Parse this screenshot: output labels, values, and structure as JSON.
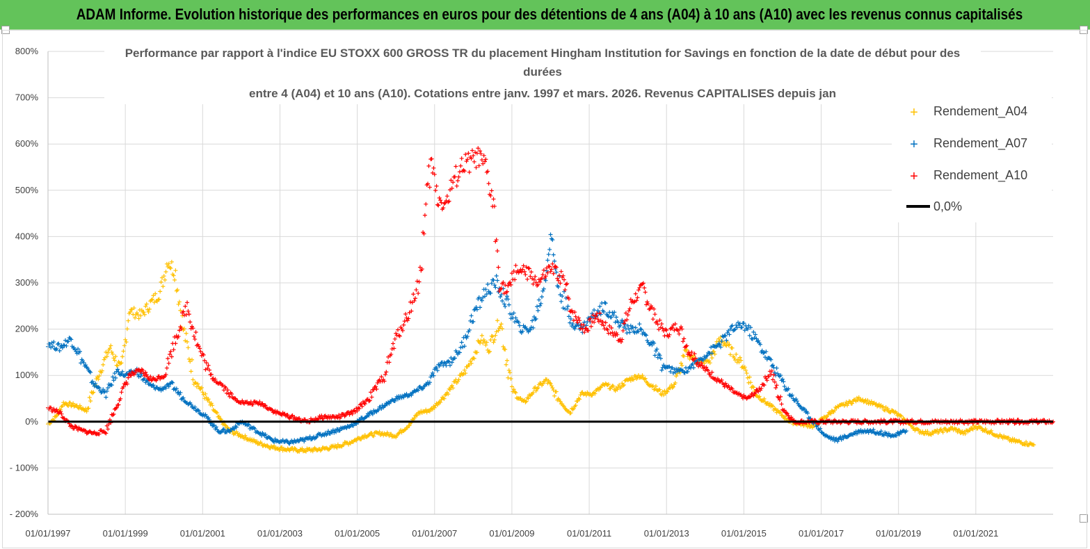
{
  "header": {
    "title": "ADAM Informe. Evolution historique des performances en euros pour des détentions de 4 ans (A04) à 10 ans (A10) avec les revenus connus capitalisés"
  },
  "chart_data": {
    "type": "scatter",
    "title_lines": [
      "Performance par rapport à l'indice EU STOXX 600 GROSS TR  du placement Hingham Institution for Savings en fonction de la date de début pour des",
      "durées",
      "entre 4 (A04) et 10 ans (A10). Cotations entre janv. 1997 et mars. 2026. Revenus CAPITALISES depuis jan"
    ],
    "x_ticks": [
      "01/01/1997",
      "01/01/1999",
      "01/01/2001",
      "01/01/2003",
      "01/01/2005",
      "01/01/2007",
      "01/01/2009",
      "01/01/2011",
      "01/01/2013",
      "01/01/2015",
      "01/01/2017",
      "01/01/2019",
      "01/01/2021"
    ],
    "y_ticks": [
      "800%",
      "700%",
      "600%",
      "500%",
      "400%",
      "300%",
      "200%",
      "100%",
      "0%",
      "- 100%",
      "- 200%"
    ],
    "xlim": [
      1997.0,
      2023.0
    ],
    "ylim": [
      -200,
      800
    ],
    "legend": [
      {
        "name": "Rendement_A04",
        "color": "#ffc000",
        "marker": "+"
      },
      {
        "name": "Rendement_A07",
        "color": "#0070c0",
        "marker": "+"
      },
      {
        "name": "Rendement_A10",
        "color": "#ff0000",
        "marker": "+"
      },
      {
        "name": "0,0%",
        "color": "#000000",
        "marker": "line"
      }
    ],
    "series": [
      {
        "name": "Rendement_A04",
        "color": "#ffc000",
        "x": [
          1997.0,
          1997.2,
          1997.4,
          1997.7,
          1998.0,
          1998.3,
          1998.6,
          1998.9,
          1999.1,
          1999.4,
          1999.6,
          1999.9,
          2000.1,
          2000.3,
          2000.5,
          2000.8,
          2001.1,
          2001.4,
          2001.7,
          2002.0,
          2002.4,
          2002.8,
          2003.2,
          2003.6,
          2004.0,
          2004.4,
          2004.8,
          2005.2,
          2005.6,
          2006.0,
          2006.3,
          2006.6,
          2006.9,
          2007.2,
          2007.5,
          2007.8,
          2008.0,
          2008.2,
          2008.4,
          2008.7,
          2009.0,
          2009.3,
          2009.6,
          2009.9,
          2010.2,
          2010.5,
          2010.8,
          2011.1,
          2011.4,
          2011.7,
          2012.0,
          2012.3,
          2012.6,
          2012.9,
          2013.2,
          2013.5,
          2013.8,
          2014.1,
          2014.4,
          2014.7,
          2015.0,
          2015.3,
          2015.6,
          2015.9,
          2016.2,
          2016.5,
          2016.8,
          2017.1,
          2017.4,
          2017.7,
          2018.0,
          2018.3,
          2018.6,
          2018.9,
          2019.2,
          2019.5,
          2019.8,
          2020.1,
          2020.4,
          2020.7,
          2021.0,
          2021.3,
          2021.6,
          2021.9,
          2022.2,
          2022.5
        ],
        "y": [
          -5,
          10,
          40,
          35,
          25,
          100,
          160,
          110,
          240,
          230,
          250,
          280,
          350,
          320,
          200,
          90,
          50,
          10,
          -20,
          -30,
          -45,
          -55,
          -60,
          -62,
          -60,
          -55,
          -45,
          -30,
          -25,
          -30,
          -10,
          20,
          25,
          50,
          80,
          110,
          140,
          180,
          160,
          220,
          70,
          40,
          70,
          90,
          50,
          20,
          60,
          60,
          80,
          70,
          90,
          100,
          80,
          60,
          80,
          150,
          130,
          130,
          180,
          150,
          120,
          60,
          40,
          20,
          0,
          -5,
          -10,
          10,
          30,
          40,
          50,
          40,
          30,
          20,
          0,
          -20,
          -25,
          -20,
          -15,
          -25,
          -10,
          -20,
          -30,
          -40,
          -45,
          -50
        ]
      },
      {
        "name": "Rendement_A07",
        "color": "#0070c0",
        "x": [
          1997.0,
          1997.3,
          1997.6,
          1997.9,
          1998.2,
          1998.5,
          1998.8,
          1999.0,
          1999.3,
          1999.6,
          1999.9,
          2000.2,
          2000.5,
          2000.8,
          2001.1,
          2001.4,
          2001.7,
          2002.0,
          2002.4,
          2002.8,
          2003.2,
          2003.6,
          2004.0,
          2004.4,
          2004.8,
          2005.2,
          2005.6,
          2006.0,
          2006.4,
          2006.8,
          2007.1,
          2007.4,
          2007.7,
          2008.0,
          2008.3,
          2008.6,
          2008.9,
          2009.2,
          2009.5,
          2009.8,
          2010.0,
          2010.2,
          2010.5,
          2010.8,
          2011.1,
          2011.4,
          2011.7,
          2012.0,
          2012.3,
          2012.6,
          2012.9,
          2013.2,
          2013.5,
          2013.8,
          2014.1,
          2014.4,
          2014.7,
          2015.0,
          2015.3,
          2015.6,
          2015.9,
          2016.2,
          2016.5,
          2016.8,
          2017.1,
          2017.4,
          2017.7,
          2018.0,
          2018.3,
          2018.6,
          2018.9,
          2019.2
        ],
        "y": [
          170,
          160,
          180,
          130,
          80,
          60,
          110,
          100,
          110,
          80,
          70,
          80,
          50,
          30,
          10,
          -20,
          -20,
          0,
          -20,
          -40,
          -45,
          -40,
          -30,
          -20,
          -10,
          10,
          30,
          50,
          60,
          80,
          120,
          130,
          160,
          230,
          280,
          300,
          250,
          200,
          200,
          280,
          400,
          300,
          220,
          200,
          230,
          250,
          220,
          200,
          200,
          170,
          120,
          110,
          110,
          130,
          150,
          170,
          200,
          210,
          180,
          140,
          100,
          60,
          30,
          0,
          -30,
          -40,
          -30,
          -20,
          -20,
          -25,
          -30,
          -20
        ]
      },
      {
        "name": "Rendement_A10",
        "color": "#ff0000",
        "x": [
          1997.0,
          1997.3,
          1997.6,
          1997.9,
          1998.2,
          1998.5,
          1998.8,
          1999.1,
          1999.4,
          1999.7,
          2000.0,
          2000.3,
          2000.6,
          2000.9,
          2001.2,
          2001.5,
          2001.8,
          2002.1,
          2002.5,
          2002.9,
          2003.3,
          2003.7,
          2004.1,
          2004.5,
          2004.9,
          2005.3,
          2005.7,
          2006.0,
          2006.3,
          2006.6,
          2006.9,
          2007.1,
          2007.3,
          2007.5,
          2007.7,
          2007.9,
          2008.1,
          2008.3,
          2008.5,
          2008.7,
          2008.9,
          2009.1,
          2009.4,
          2009.7,
          2010.0,
          2010.3,
          2010.6,
          2010.9,
          2011.2,
          2011.5,
          2011.8,
          2012.1,
          2012.4,
          2012.7,
          2013.0,
          2013.3,
          2013.6,
          2013.9,
          2014.2,
          2014.5,
          2014.8,
          2015.1,
          2015.4,
          2015.7,
          2016.0,
          2016.3,
          2016.6,
          2017.0,
          2017.5,
          2018.0,
          2018.5,
          2019.0,
          2019.5,
          2020.0,
          2020.5,
          2021.0,
          2021.5,
          2022.0,
          2022.5,
          2023.0
        ],
        "y": [
          30,
          20,
          -10,
          -20,
          -25,
          -20,
          40,
          100,
          110,
          90,
          100,
          180,
          250,
          160,
          100,
          80,
          50,
          40,
          40,
          20,
          10,
          0,
          10,
          10,
          20,
          50,
          100,
          180,
          230,
          300,
          560,
          480,
          470,
          520,
          550,
          560,
          570,
          550,
          480,
          300,
          280,
          330,
          320,
          300,
          330,
          310,
          230,
          200,
          230,
          200,
          180,
          260,
          290,
          220,
          190,
          210,
          150,
          120,
          100,
          80,
          60,
          50,
          70,
          110,
          30,
          0,
          0,
          0,
          0,
          0,
          0,
          0,
          0,
          0,
          0,
          0,
          0,
          0,
          0,
          0
        ]
      }
    ],
    "reference_line": {
      "name": "0,0%",
      "y": 0
    }
  }
}
